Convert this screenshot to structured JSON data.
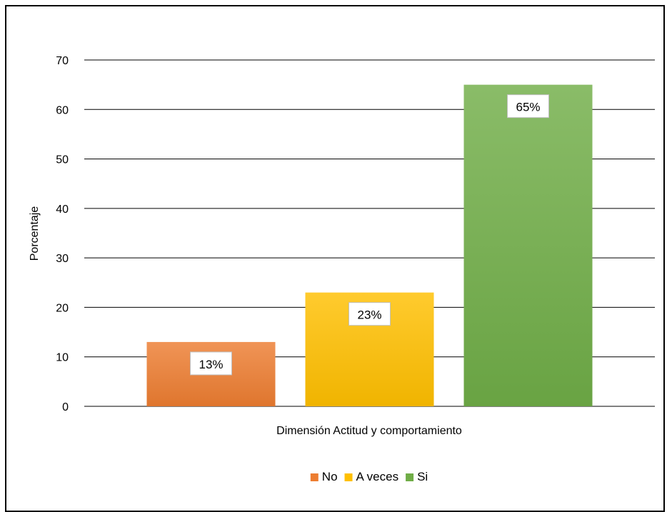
{
  "chart_data": {
    "type": "bar",
    "title": "",
    "xlabel": "Dimensión Actitud y comportamiento",
    "ylabel": "Porcentaje",
    "ylim": [
      0,
      70
    ],
    "yticks": [
      0,
      10,
      20,
      30,
      40,
      50,
      60,
      70
    ],
    "grid": true,
    "legend_position": "bottom",
    "series": [
      {
        "name": "No",
        "value": 13,
        "label": "13%",
        "color": "#ED7D31"
      },
      {
        "name": "A veces",
        "value": 23,
        "label": "23%",
        "color": "#FFC000"
      },
      {
        "name": "Si",
        "value": 65,
        "label": "65%",
        "color": "#70AD47"
      }
    ]
  }
}
